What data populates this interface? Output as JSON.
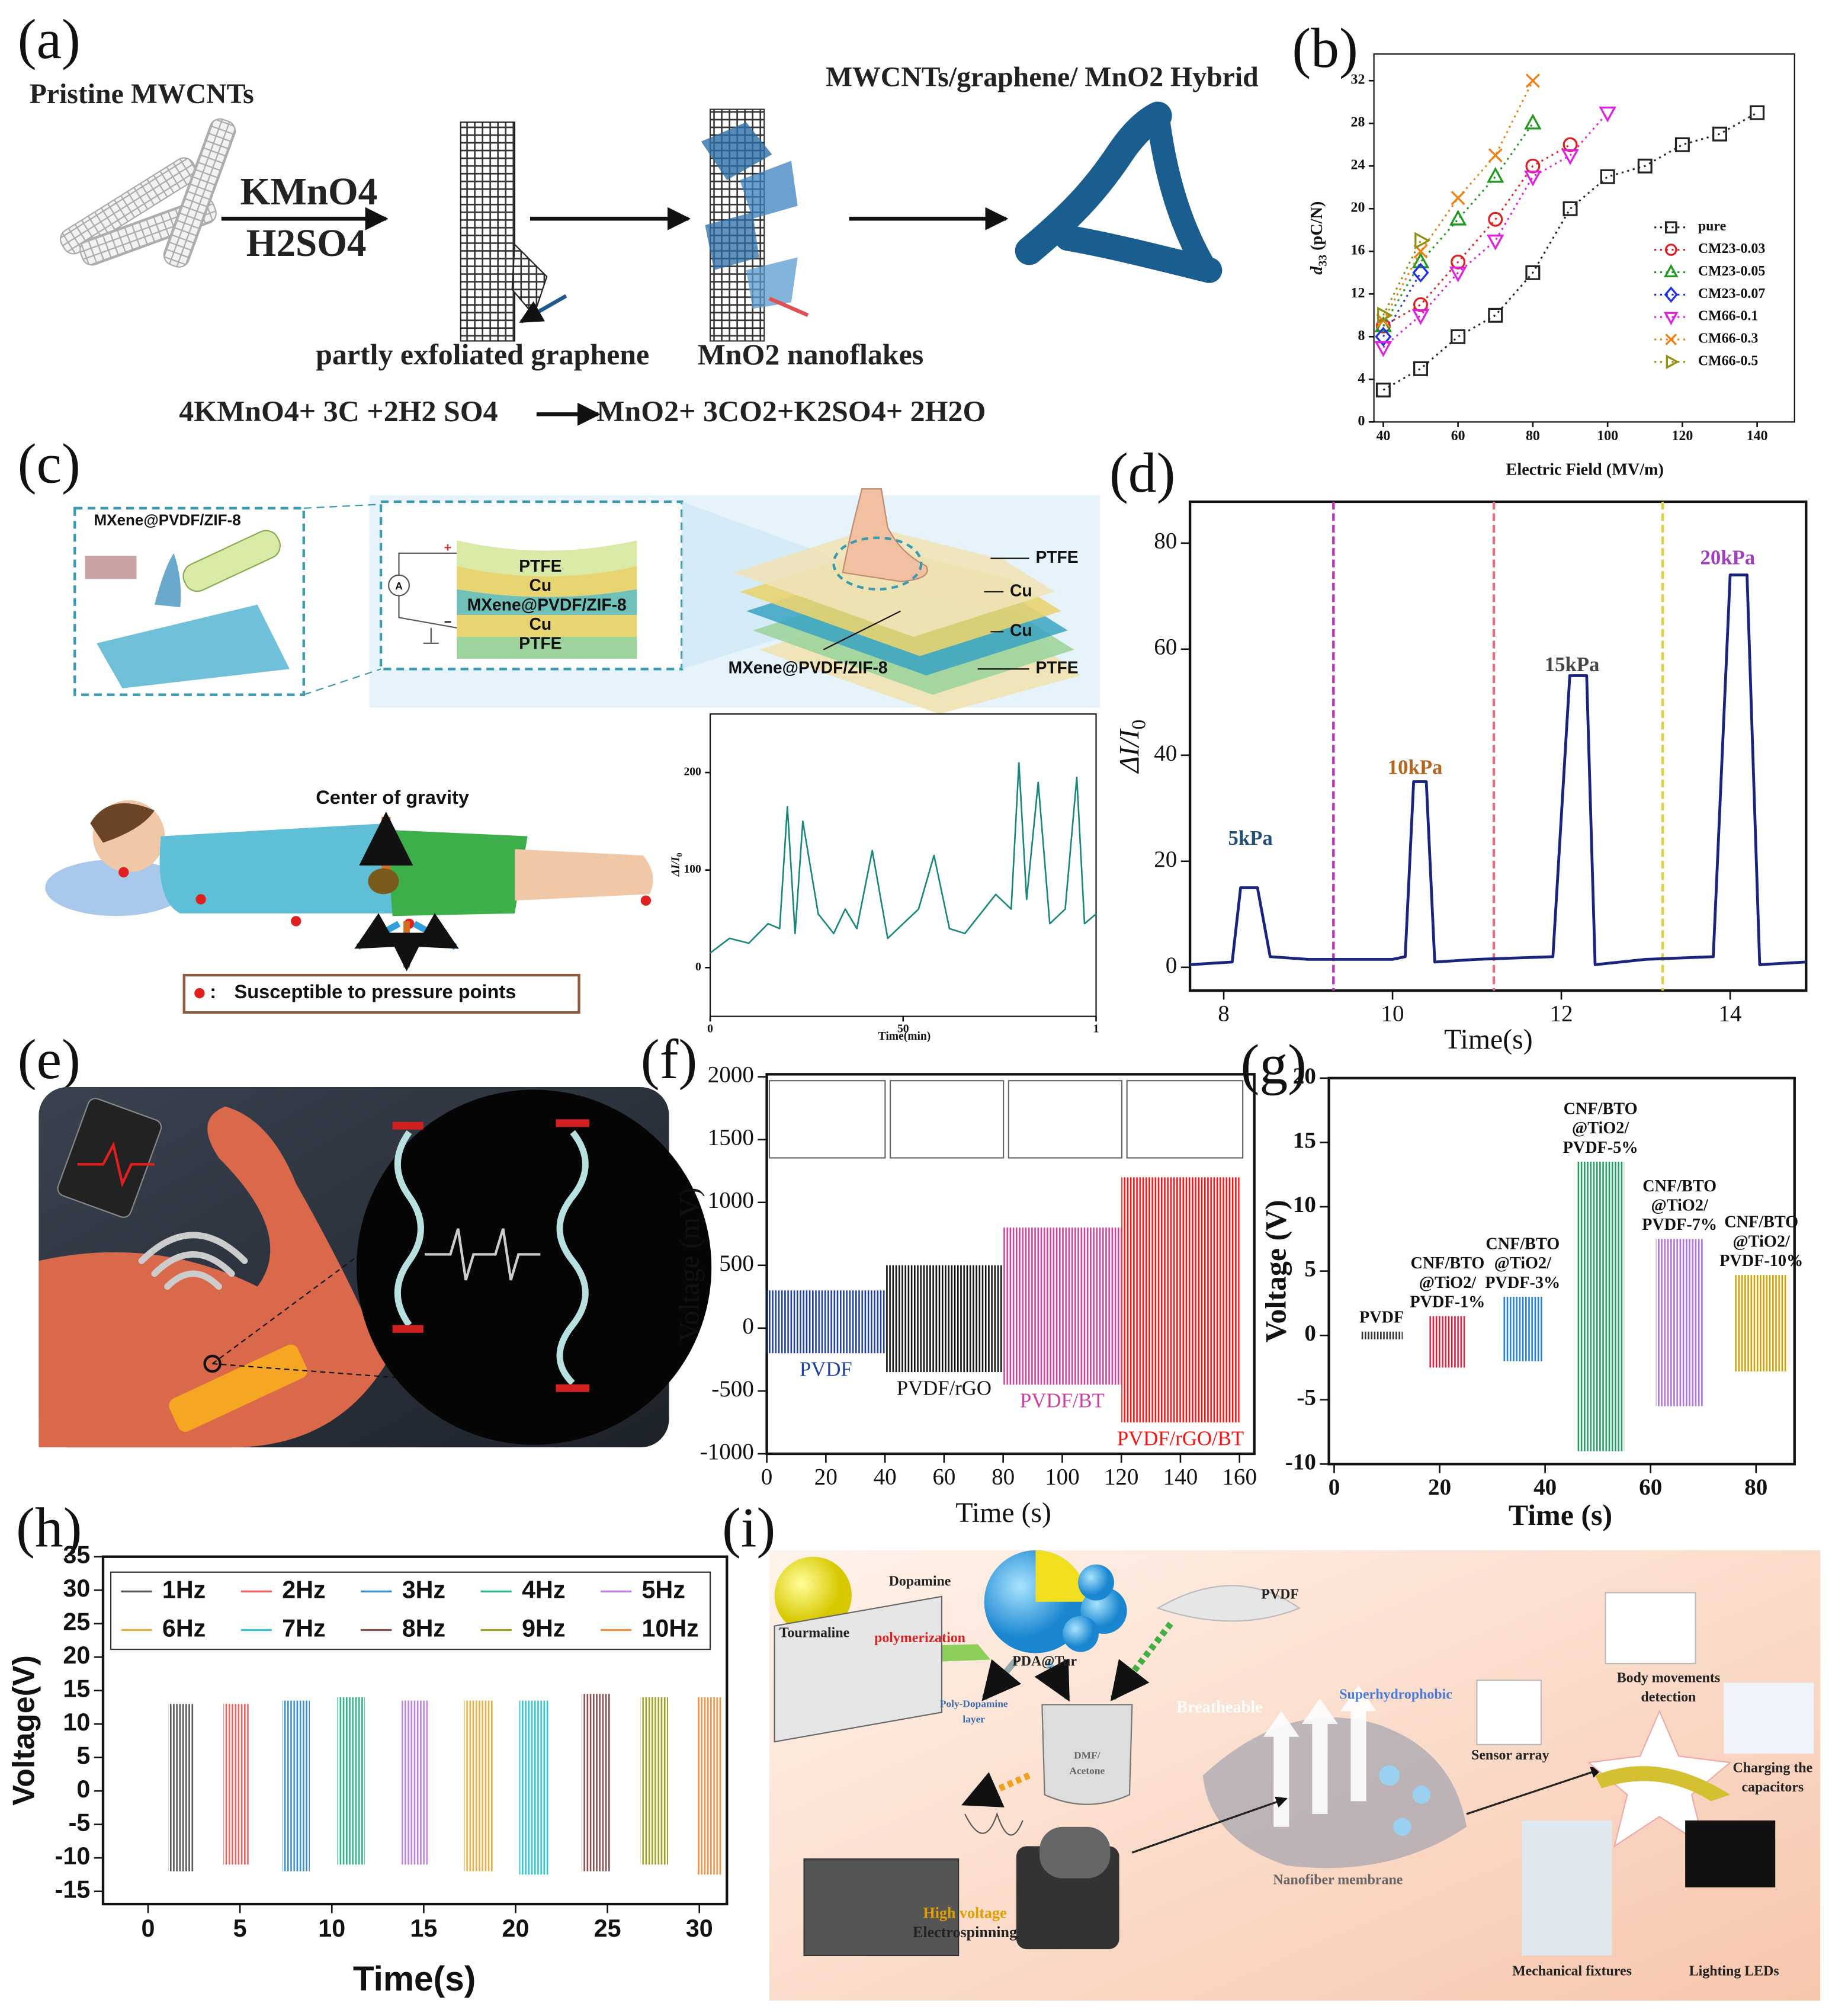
{
  "figure": {
    "panel_labels": [
      "(a)",
      "(b)",
      "(c)",
      "(d)",
      "(e)",
      "(f)",
      "(g)",
      "(h)",
      "(i)"
    ]
  },
  "panel_a": {
    "pristine": "Pristine MWCNTs",
    "reagent_top": "KMnO4",
    "reagent_bottom": "H2SO4",
    "hybrid": "MWCNTs/graphene/ MnO2 Hybrid",
    "graphene": "partly exfoliated  graphene",
    "nanoflakes": "MnO2 nanoflakes",
    "equation_left": "4KMnO4+ 3C +2H2 SO4",
    "equation_right": "MnO2+ 3CO2+K2SO4+ 2H2O"
  },
  "panel_c": {
    "fiber": "MXene@PVDF/ZIF-8",
    "stack": [
      "PTFE",
      "Cu",
      "MXene@PVDF/ZIF-8",
      "Cu",
      "PTFE"
    ],
    "ammeter": "A",
    "polarity": [
      "+",
      "−"
    ],
    "device_layers": [
      "PTFE",
      "Cu",
      "Cu",
      "PTFE"
    ],
    "device_core": "MXene@PVDF/ZIF-8",
    "gravity": "Center of gravity",
    "legend_symbol": ":",
    "legend": "Susceptible to pressure points"
  },
  "panel_i": {
    "tourmaline": "Tourmaline",
    "dopamine": "Dopamine",
    "polymerization": "polymerization",
    "pda": "PDA@Tur",
    "pvdf": "PVDF",
    "layer": [
      "Poly-Dopamine",
      "layer"
    ],
    "solvent": [
      "DMF/",
      "Acetone"
    ],
    "breatheable": "Breatheable",
    "superhydrophobic": "Superhydrophobic",
    "membrane": "Nanofiber membrane",
    "sensor": "Sensor array",
    "body": [
      "Body movements",
      "detection"
    ],
    "charging": [
      "Charging the",
      "capacitors"
    ],
    "fixtures": "Mechanical fixtures",
    "leds": "Lighting LEDs",
    "voltage": "High voltage",
    "electrospinning": "Electrospinning"
  },
  "chart_data": [
    {
      "type": "scatter",
      "x_label": "Electric Field (MV/m)",
      "y_label": {
        "symbol": "d",
        "sub": "33",
        "unit": " (pC/N)"
      },
      "xlim": [
        37.5,
        150
      ],
      "xticks": [
        40,
        60,
        80,
        100,
        120,
        140
      ],
      "ylim": [
        0,
        34.5
      ],
      "yticks": [
        0,
        4,
        8,
        12,
        16,
        20,
        24,
        28,
        32
      ],
      "legend": "right",
      "series": [
        {
          "name": "pure",
          "color": "#222222",
          "marker": "square",
          "x": [
            40,
            50,
            60,
            70,
            80,
            90,
            100,
            110,
            120,
            130,
            140
          ],
          "values": [
            3,
            5,
            8,
            10,
            14,
            20,
            23,
            24,
            26,
            27,
            29
          ]
        },
        {
          "name": "CM23-0.03",
          "color": "#e02020",
          "marker": "circle",
          "x": [
            40,
            50,
            60,
            70,
            80,
            90
          ],
          "values": [
            9,
            11,
            15,
            19,
            24,
            26
          ]
        },
        {
          "name": "CM23-0.05",
          "color": "#1f9a1f",
          "marker": "triangle",
          "x": [
            40,
            50,
            60,
            70,
            80
          ],
          "values": [
            9,
            15,
            19,
            23,
            28
          ]
        },
        {
          "name": "CM23-0.07",
          "color": "#2030e0",
          "marker": "diamond",
          "x": [
            40,
            50
          ],
          "values": [
            8,
            14
          ]
        },
        {
          "name": "CM66-0.1",
          "color": "#e020e0",
          "marker": "triangle-down",
          "x": [
            40,
            50,
            60,
            70,
            80,
            90,
            100
          ],
          "values": [
            7,
            10,
            14,
            17,
            23,
            25,
            29
          ]
        },
        {
          "name": "CM66-0.3",
          "color": "#f08010",
          "marker": "cross",
          "x": [
            40,
            50,
            60,
            70,
            80
          ],
          "values": [
            9.5,
            16,
            21,
            25,
            32
          ]
        },
        {
          "name": "CM66-0.5",
          "color": "#8f8f10",
          "marker": "triangle-right",
          "x": [
            40,
            50
          ],
          "values": [
            10,
            17
          ]
        }
      ]
    },
    {
      "type": "line",
      "x_label": "Time(min)",
      "y_label": {
        "symbol": "ΔI/I",
        "sub": "0"
      },
      "xlim": [
        0,
        100
      ],
      "xticks": [
        0,
        50,
        {
          "value": 100,
          "label": "1"
        }
      ],
      "ylim": [
        -50,
        260
      ],
      "yticks": [
        0,
        100,
        200
      ],
      "series": [
        {
          "color": "#17877a",
          "x": [
            0,
            5,
            10,
            15,
            18,
            20,
            22,
            24,
            28,
            32,
            35,
            38,
            42,
            46,
            50,
            54,
            58,
            62,
            66,
            70,
            74,
            78,
            80,
            82,
            85,
            88,
            92,
            95,
            97,
            100
          ],
          "values": [
            15,
            30,
            25,
            45,
            40,
            165,
            35,
            150,
            55,
            35,
            60,
            40,
            120,
            30,
            45,
            60,
            115,
            40,
            35,
            55,
            75,
            60,
            210,
            70,
            190,
            45,
            60,
            195,
            45,
            55
          ]
        }
      ]
    },
    {
      "type": "line",
      "x_label": "Time(s)",
      "y_label": {
        "symbol": "ΔI/I",
        "sub": "0"
      },
      "xlim": [
        7.6,
        14.9
      ],
      "xticks": [
        8,
        10,
        12,
        14
      ],
      "ylim": [
        -4.4,
        87.8
      ],
      "yticks": [
        0,
        20,
        40,
        60,
        80
      ],
      "series": [
        {
          "color": "#1a237e",
          "x": [
            7.6,
            8.1,
            8.2,
            8.4,
            8.55,
            9,
            10,
            10.15,
            10.25,
            10.4,
            10.5,
            11,
            11.9,
            12.1,
            12.3,
            12.4,
            13,
            13.8,
            14,
            14.2,
            14.35,
            14.9
          ],
          "values": [
            0.5,
            1,
            15,
            15,
            2,
            1.5,
            1.5,
            2,
            35,
            35,
            1,
            1.5,
            2,
            55,
            55,
            0.5,
            1.5,
            2,
            74,
            74,
            0.5,
            1
          ]
        }
      ],
      "annotations": [
        {
          "text": "5kPa",
          "color": "#1f4e79"
        },
        {
          "text": "10kPa",
          "color": "#b5651d"
        },
        {
          "text": "15kPa",
          "color": "#444444"
        },
        {
          "text": "20kPa",
          "color": "#a040c0"
        }
      ],
      "vlines": [
        {
          "x": 9.3,
          "color": "#c030c0"
        },
        {
          "x": 11.2,
          "color": "#e07080"
        },
        {
          "x": 13.2,
          "color": "#e0d040"
        }
      ]
    },
    {
      "type": "band",
      "x_label": "Time (s)",
      "y_label": "Voltage (mV)",
      "xlim": [
        0,
        165
      ],
      "xticks": [
        0,
        20,
        40,
        60,
        80,
        100,
        120,
        140,
        160
      ],
      "ylim": [
        -1000,
        2020
      ],
      "yticks": [
        -1000,
        -500,
        0,
        500,
        1000,
        1500,
        2000
      ],
      "label_position": "below",
      "series": [
        {
          "name": "PVDF",
          "color": "#2040a0",
          "x": [
            0,
            40
          ],
          "low": -200,
          "high": 300
        },
        {
          "name": "PVDF/rGO",
          "color": "#111111",
          "x": [
            40,
            80
          ],
          "low": -350,
          "high": 500
        },
        {
          "name": "PVDF/BT",
          "color": "#d040a0",
          "x": [
            80,
            120
          ],
          "low": -450,
          "high": 800
        },
        {
          "name": "PVDF/rGO/BT",
          "color": "#ff1010",
          "x": [
            120,
            160
          ],
          "low": -750,
          "high": 1200
        }
      ]
    },
    {
      "type": "band",
      "x_label": "Time (s)",
      "y_label": "Voltage (V)",
      "xlim": [
        -1,
        87.3
      ],
      "xticks": [
        0,
        20,
        40,
        60,
        80
      ],
      "ylim": [
        -10,
        20
      ],
      "yticks": [
        -10,
        -5,
        0,
        5,
        10,
        15,
        20
      ],
      "label_position": "above",
      "series": [
        {
          "label": [
            "PVDF"
          ],
          "color": "#333333",
          "x": [
            5,
            13
          ],
          "low": -0.3,
          "high": 0.3
        },
        {
          "label": [
            "CNF/BTO",
            "@TiO2/",
            "PVDF-1%"
          ],
          "color": "#e02040",
          "x": [
            18,
            25
          ],
          "low": -2.5,
          "high": 1.5
        },
        {
          "label": [
            "CNF/BTO",
            "@TiO2/",
            "PVDF-3%"
          ],
          "color": "#2080e0",
          "x": [
            32,
            39.5
          ],
          "low": -2,
          "high": 3
        },
        {
          "label": [
            "CNF/BTO",
            "@TiO2/",
            "PVDF-5%"
          ],
          "color": "#20a060",
          "x": [
            46,
            55
          ],
          "low": -9,
          "high": 13.5
        },
        {
          "label": [
            "CNF/BTO",
            "@TiO2/",
            "PVDF-7%"
          ],
          "color": "#b070e0",
          "x": [
            61,
            70
          ],
          "low": -5.5,
          "high": 7.5
        },
        {
          "label": [
            "CNF/BTO",
            "@TiO2/",
            "PVDF-10%"
          ],
          "color": "#d4a000",
          "x": [
            76,
            86
          ],
          "low": -2.8,
          "high": 4.7
        }
      ]
    },
    {
      "type": "band",
      "x_label": "Time(s)",
      "y_label": "Voltage(V)",
      "xlim": [
        -2.45,
        31.5
      ],
      "xticks": [
        0,
        5,
        10,
        15,
        20,
        25,
        30
      ],
      "ylim": [
        -16.9,
        35
      ],
      "yticks": [
        -15,
        -10,
        -5,
        0,
        5,
        10,
        15,
        20,
        25,
        30,
        35
      ],
      "legend": "top",
      "series": [
        {
          "name": "1Hz",
          "color": "#555555",
          "x": [
            1.1,
            2.5
          ],
          "low": -12,
          "high": 13
        },
        {
          "name": "2Hz",
          "color": "#f06060",
          "x": [
            4.1,
            5.5
          ],
          "low": -11,
          "high": 13
        },
        {
          "name": "3Hz",
          "color": "#3a8fd0",
          "x": [
            7.3,
            8.8
          ],
          "low": -12,
          "high": 13.5
        },
        {
          "name": "4Hz",
          "color": "#2bb48a",
          "x": [
            10.3,
            11.8
          ],
          "low": -11,
          "high": 14
        },
        {
          "name": "5Hz",
          "color": "#c080e0",
          "x": [
            13.8,
            15.3
          ],
          "low": -11,
          "high": 13.5
        },
        {
          "name": "6Hz",
          "color": "#e8b040",
          "x": [
            17.2,
            18.8
          ],
          "low": -12,
          "high": 13.5
        },
        {
          "name": "7Hz",
          "color": "#30c8d0",
          "x": [
            20.2,
            21.8
          ],
          "low": -12.5,
          "high": 13.5
        },
        {
          "name": "8Hz",
          "color": "#8a5050",
          "x": [
            23.6,
            25.2
          ],
          "low": -12,
          "high": 14.5
        },
        {
          "name": "9Hz",
          "color": "#a0a020",
          "x": [
            26.8,
            28.3
          ],
          "low": -11,
          "high": 14
        },
        {
          "name": "10Hz",
          "color": "#f09040",
          "x": [
            29.9,
            31.2
          ],
          "low": -12.5,
          "high": 14
        }
      ]
    }
  ]
}
